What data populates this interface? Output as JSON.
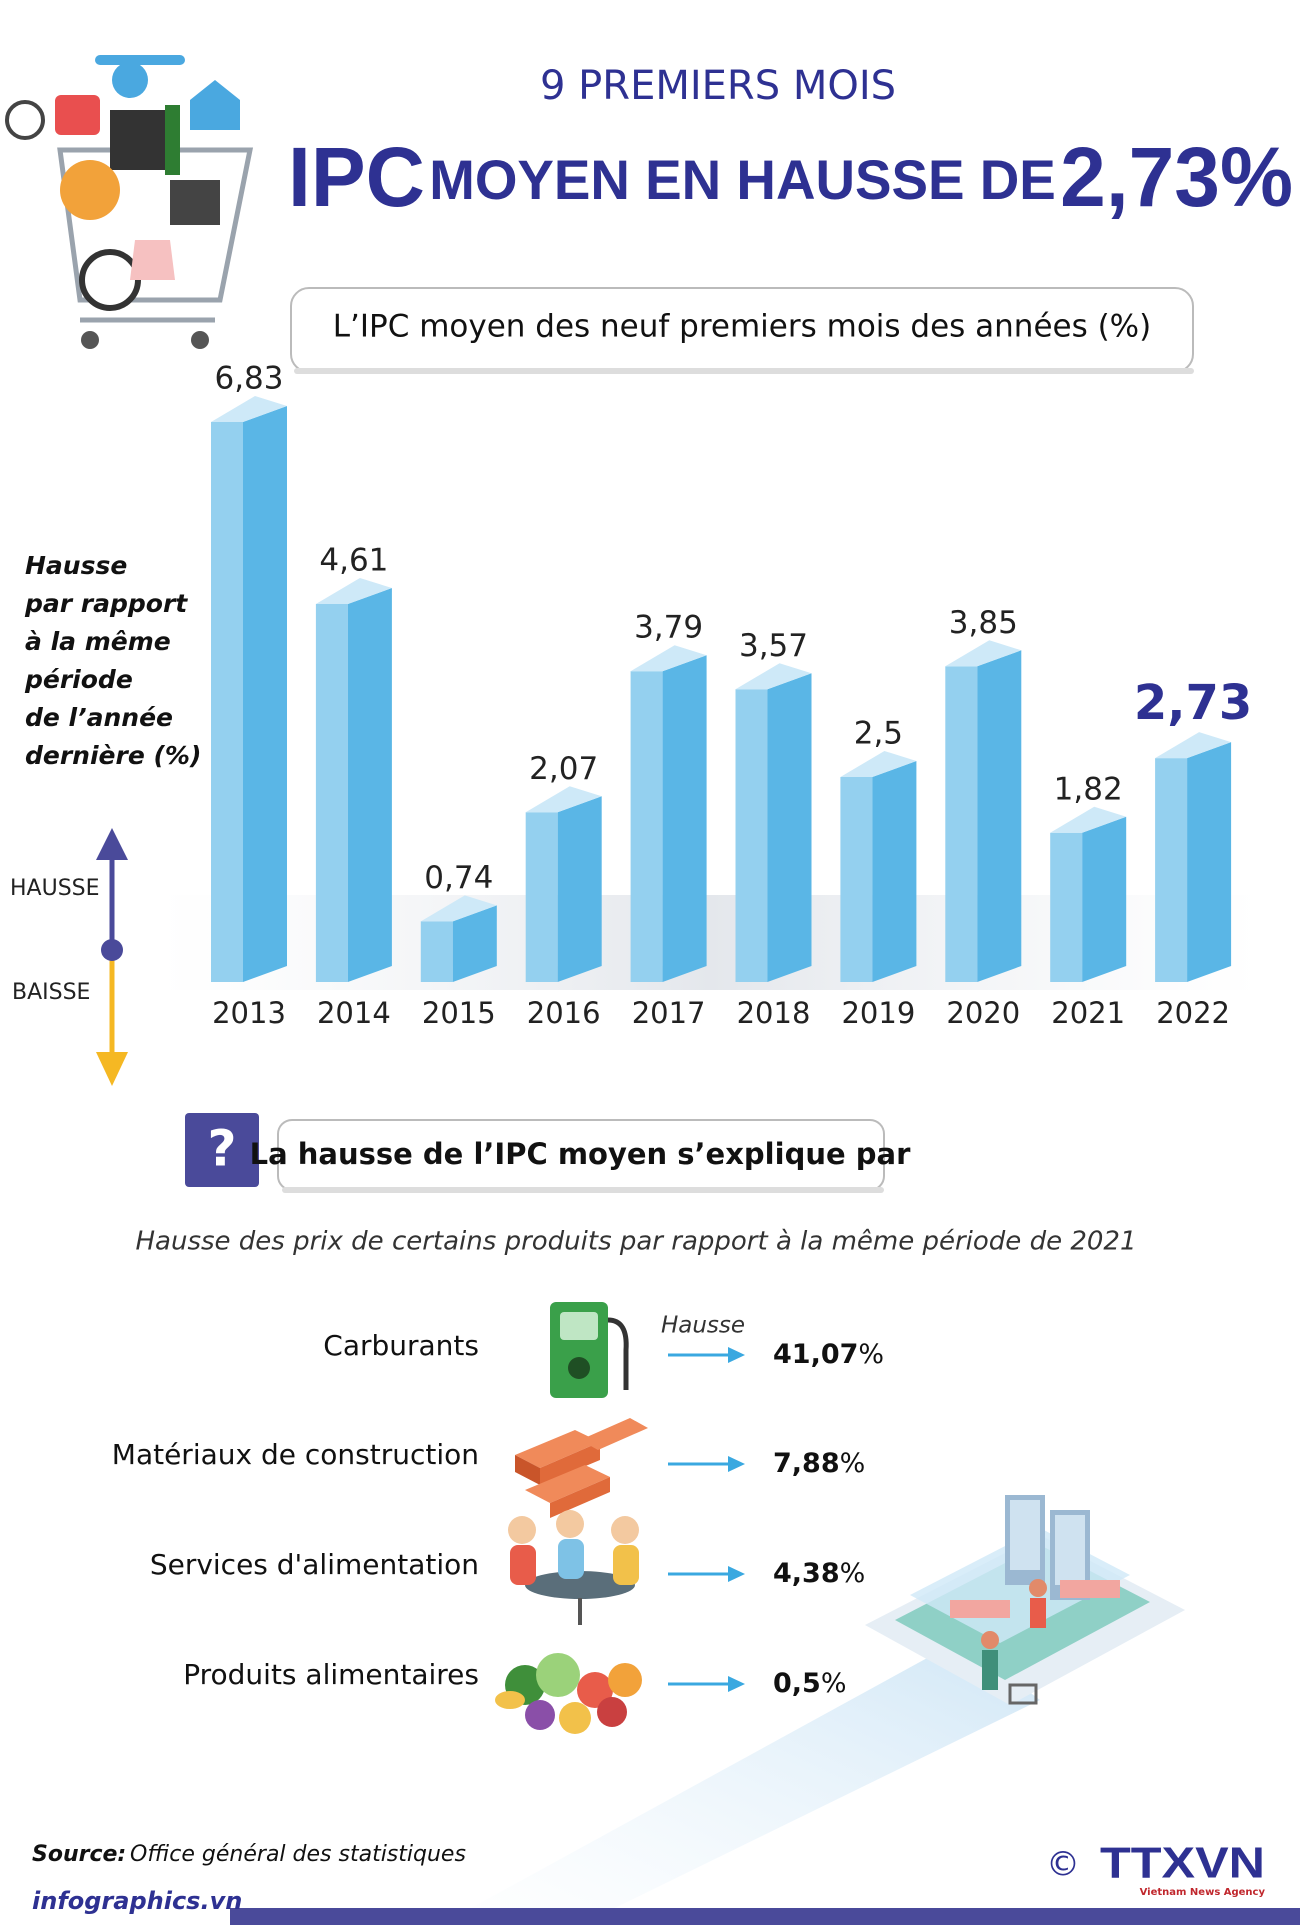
{
  "header": {
    "kicker": "9 PREMIERS MOIS",
    "title_lead": "IPC",
    "title_middle": "MOYEN EN HAUSSE DE",
    "title_figure": "2,73%"
  },
  "chart_data": {
    "type": "bar",
    "title": "L’IPC moyen des neuf premiers mois des années (%)",
    "y_label_lines": [
      "Hausse",
      "par rapport",
      "à la même",
      "période",
      "de l’année",
      "dernière (%)"
    ],
    "categories": [
      "2013",
      "2014",
      "2015",
      "2016",
      "2017",
      "2018",
      "2019",
      "2020",
      "2021",
      "2022"
    ],
    "values": [
      6.83,
      4.61,
      0.74,
      2.07,
      3.79,
      3.57,
      2.5,
      3.85,
      1.82,
      2.73
    ],
    "value_labels": [
      "6,83",
      "4,61",
      "0,74",
      "2,07",
      "3,79",
      "3,57",
      "2,5",
      "3,85",
      "1,82",
      "2,73"
    ],
    "color": "#5ab6e6",
    "highlight_category": "2022",
    "highlight_color": "#2e3192",
    "direction_labels": {
      "up": "HAUSSE",
      "down": "BAISSE"
    }
  },
  "explanation": {
    "question_icon": "?",
    "heading": "La hausse de l’IPC moyen s’explique par",
    "subtitle": "Hausse des prix de certains  produits par rapport à la même période de 2021",
    "arrow_label": "Hausse",
    "items": [
      {
        "name": "Carburants",
        "value": "41,07",
        "unit": "%"
      },
      {
        "name": "Matériaux de construction",
        "value": "7,88",
        "unit": "%"
      },
      {
        "name": "Services d'alimentation",
        "value": "4,38",
        "unit": "%"
      },
      {
        "name": "Produits alimentaires",
        "value": "0,5",
        "unit": "%"
      }
    ]
  },
  "footer": {
    "source_label": "Source:",
    "source": "Office général des statistiques",
    "site": "infographics.vn",
    "copyright": "©",
    "logo": "TTXVN",
    "logo_sub": "Vietnam News Agency"
  }
}
